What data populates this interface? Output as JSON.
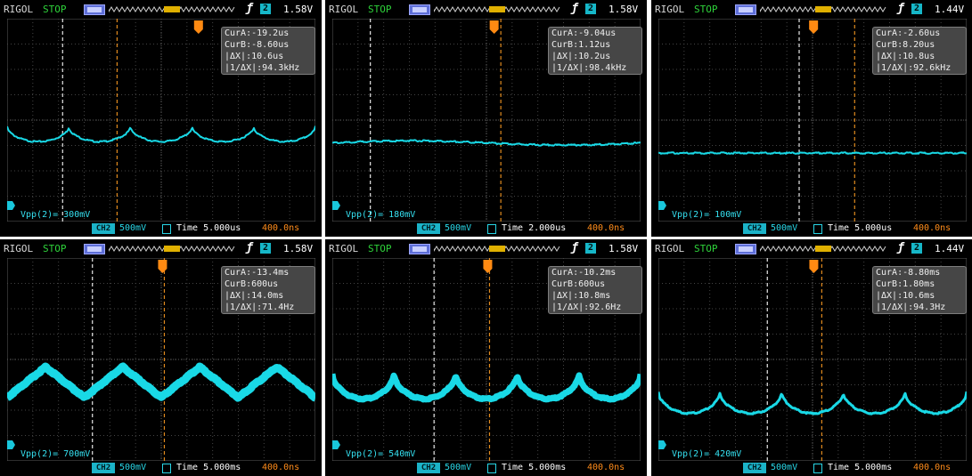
{
  "chart_data": [
    {
      "type": "line",
      "scope_label": "RIGOL",
      "status": "STOP",
      "trigger_level": "1.58V",
      "cursor_a": "CurA:-19.2us",
      "cursor_b": "CurB:-8.60us",
      "delta_x": "|ΔX|:10.6us",
      "inv_delta_x": "|1/ΔX|:94.3kHz",
      "vpp": "Vpp(2)= 300mV",
      "ch_label": "CH2",
      "volts_div": "500mV",
      "timebase": "Time 5.000us",
      "trigger_offset": "400.0ns",
      "waveform": {
        "shape": "scallop",
        "periods": 5,
        "offset_div": -0.55,
        "amp_div": 0.6,
        "thickness": 2
      },
      "cursor_a_div": -3.84,
      "cursor_b_div": -1.72,
      "trigger_pos_div": 1.45
    },
    {
      "type": "line",
      "scope_label": "RIGOL",
      "status": "STOP",
      "trigger_level": "1.58V",
      "cursor_a": "CurA:-9.04us",
      "cursor_b": "CurB:1.12us",
      "delta_x": "|ΔX|:10.2us",
      "inv_delta_x": "|1/ΔX|:98.4kHz",
      "vpp": "Vpp(2)= 180mV",
      "ch_label": "CH2",
      "volts_div": "500mV",
      "timebase": "Time 2.000us",
      "trigger_offset": "400.0ns",
      "waveform": {
        "shape": "sine",
        "periods": 1,
        "offset_div": -0.9,
        "amp_div": 0.17,
        "thickness": 2
      },
      "cursor_a_div": -4.52,
      "cursor_b_div": 0.56,
      "trigger_pos_div": 0.3
    },
    {
      "type": "line",
      "scope_label": "RIGOL",
      "status": "STOP",
      "trigger_level": "1.44V",
      "cursor_a": "CurA:-2.60us",
      "cursor_b": "CurB:8.20us",
      "delta_x": "|ΔX|:10.8us",
      "inv_delta_x": "|1/ΔX|:92.6kHz",
      "vpp": "Vpp(2)= 100mV",
      "ch_label": "CH2",
      "volts_div": "500mV",
      "timebase": "Time 5.000us",
      "trigger_offset": "400.0ns",
      "waveform": {
        "shape": "flat",
        "periods": 1,
        "offset_div": -1.3,
        "amp_div": 0.03,
        "thickness": 2
      },
      "cursor_a_div": -0.52,
      "cursor_b_div": 1.64,
      "trigger_pos_div": 0.04
    },
    {
      "type": "line",
      "scope_label": "RIGOL",
      "status": "STOP",
      "trigger_level": "1.58V",
      "cursor_a": "CurA:-13.4ms",
      "cursor_b": "CurB:600us",
      "delta_x": "|ΔX|:14.0ms",
      "inv_delta_x": "|1/ΔX|:71.4Hz",
      "vpp": "Vpp(2)= 700mV",
      "ch_label": "CH2",
      "volts_div": "500mV",
      "timebase": "Time 5.000ms",
      "trigger_offset": "400.0ns",
      "waveform": {
        "shape": "triangle",
        "periods": 4,
        "offset_div": -0.9,
        "amp_div": 1.2,
        "thickness": 9
      },
      "cursor_a_div": -2.68,
      "cursor_b_div": 0.12,
      "trigger_pos_div": 0.05
    },
    {
      "type": "line",
      "scope_label": "RIGOL",
      "status": "STOP",
      "trigger_level": "1.58V",
      "cursor_a": "CurA:-10.2ms",
      "cursor_b": "CurB:600us",
      "delta_x": "|ΔX|:10.8ms",
      "inv_delta_x": "|1/ΔX|:92.6Hz",
      "vpp": "Vpp(2)= 540mV",
      "ch_label": "CH2",
      "volts_div": "500mV",
      "timebase": "Time 5.000ms",
      "trigger_offset": "400.0ns",
      "waveform": {
        "shape": "scallop",
        "periods": 5,
        "offset_div": -1.05,
        "amp_div": 1.0,
        "thickness": 7
      },
      "cursor_a_div": -2.04,
      "cursor_b_div": 0.12,
      "trigger_pos_div": 0.05
    },
    {
      "type": "line",
      "scope_label": "RIGOL",
      "status": "STOP",
      "trigger_level": "1.44V",
      "cursor_a": "CurA:-8.80ms",
      "cursor_b": "CurB:1.80ms",
      "delta_x": "|ΔX|:10.6ms",
      "inv_delta_x": "|1/ΔX|:94.3Hz",
      "vpp": "Vpp(2)= 420mV",
      "ch_label": "CH2",
      "volts_div": "500mV",
      "timebase": "Time 5.000ms",
      "trigger_offset": "400.0ns",
      "waveform": {
        "shape": "scallop",
        "periods": 5,
        "offset_div": -1.7,
        "amp_div": 0.85,
        "thickness": 3
      },
      "cursor_a_div": -1.76,
      "cursor_b_div": 0.36,
      "trigger_pos_div": 0.05
    }
  ]
}
